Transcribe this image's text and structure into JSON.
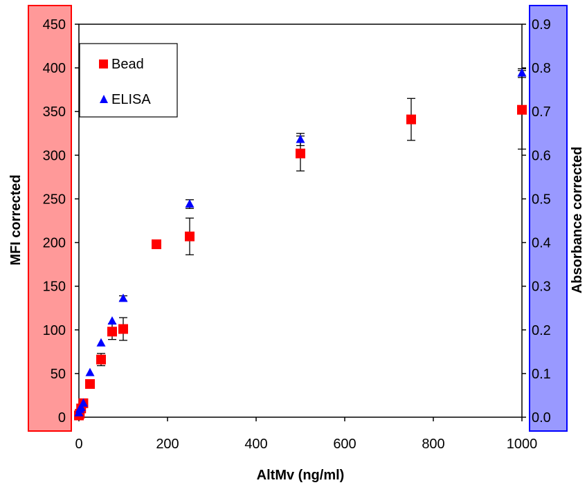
{
  "chart_data": {
    "type": "scatter",
    "xlabel": "AltMv (ng/ml)",
    "ylabel_left": "MFI corrected",
    "ylabel_right": "Absorbance corrected",
    "xlim": [
      0,
      1000
    ],
    "ylim_left": [
      0,
      450
    ],
    "ylim_right": [
      0,
      0.9
    ],
    "x_ticks": [
      "0",
      "200",
      "400",
      "600",
      "800",
      "1000"
    ],
    "y_left_ticks": [
      "0",
      "50",
      "100",
      "150",
      "200",
      "250",
      "300",
      "350",
      "400",
      "450"
    ],
    "y_right_ticks": [
      "0.0",
      "0.1",
      "0.2",
      "0.3",
      "0.4",
      "0.5",
      "0.6",
      "0.7",
      "0.8",
      "0.9"
    ],
    "grid": false,
    "legend_position": "top-left",
    "series": [
      {
        "name": "Bead",
        "axis": "left",
        "marker": "square",
        "color": "#ff0000",
        "points": [
          {
            "x": 0,
            "y": 2,
            "err": 0
          },
          {
            "x": 2,
            "y": 4,
            "err": 0
          },
          {
            "x": 5,
            "y": 10,
            "err": 0
          },
          {
            "x": 10,
            "y": 16,
            "err": 0
          },
          {
            "x": 25,
            "y": 38,
            "err": 0
          },
          {
            "x": 50,
            "y": 66,
            "err": 7
          },
          {
            "x": 75,
            "y": 98,
            "err": 9
          },
          {
            "x": 100,
            "y": 101,
            "err": 13
          },
          {
            "x": 175,
            "y": 198,
            "err": 0
          },
          {
            "x": 250,
            "y": 207,
            "err": 21
          },
          {
            "x": 500,
            "y": 302,
            "err": 20
          },
          {
            "x": 750,
            "y": 341,
            "err": 24
          },
          {
            "x": 1000,
            "y": 352,
            "err": 45
          }
        ]
      },
      {
        "name": "ELISA",
        "axis": "right",
        "marker": "triangle",
        "color": "#0000ff",
        "points": [
          {
            "x": 0,
            "y": 0.01,
            "err": 0
          },
          {
            "x": 2,
            "y": 0.018,
            "err": 0
          },
          {
            "x": 5,
            "y": 0.022,
            "err": 0
          },
          {
            "x": 10,
            "y": 0.032,
            "err": 0
          },
          {
            "x": 25,
            "y": 0.102,
            "err": 0
          },
          {
            "x": 50,
            "y": 0.17,
            "err": 0
          },
          {
            "x": 75,
            "y": 0.22,
            "err": 0
          },
          {
            "x": 100,
            "y": 0.272,
            "err": 0.006
          },
          {
            "x": 250,
            "y": 0.488,
            "err": 0.01
          },
          {
            "x": 500,
            "y": 0.636,
            "err": 0.014
          },
          {
            "x": 1000,
            "y": 0.788,
            "err": 0.01
          }
        ]
      }
    ]
  },
  "colors": {
    "left_axis_panel_fill": "#ff9999",
    "left_axis_panel_border": "#ff0000",
    "right_axis_panel_fill": "#9999ff",
    "right_axis_panel_border": "#0000ff"
  }
}
